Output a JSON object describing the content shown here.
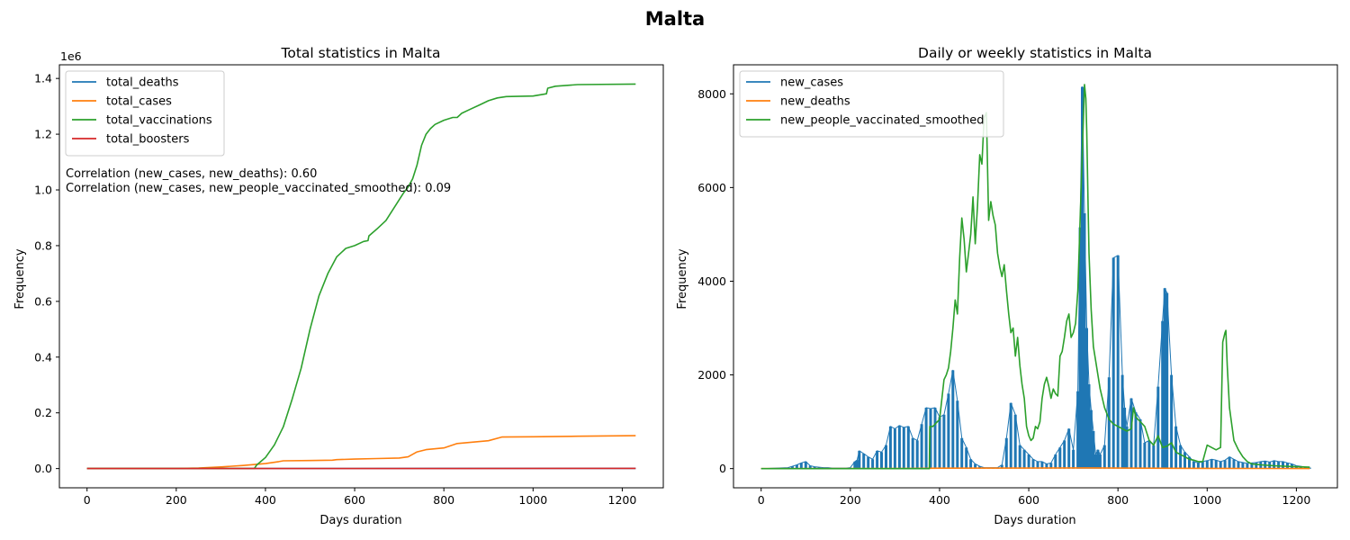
{
  "figure": {
    "title": "Malta"
  },
  "colors": {
    "blue": "#1f77b4",
    "orange": "#ff7f0e",
    "green": "#2ca02c",
    "red": "#d62728"
  },
  "chart_data": [
    {
      "type": "line",
      "title": "Total statistics in Malta",
      "xlabel": "Days duration",
      "ylabel": "Frequency",
      "y_offset_text": "1e6",
      "xlim": [
        -62,
        1292
      ],
      "ylim": [
        -0.069,
        1.449
      ],
      "xticks": [
        0,
        200,
        400,
        600,
        800,
        1000,
        1200
      ],
      "xtick_labels": [
        "0",
        "200",
        "400",
        "600",
        "800",
        "1000",
        "1200"
      ],
      "yticks": [
        0,
        0.2,
        0.4,
        0.6,
        0.8,
        1.0,
        1.2,
        1.4
      ],
      "ytick_labels": [
        "0.0",
        "0.2",
        "0.4",
        "0.6",
        "0.8",
        "1.0",
        "1.2",
        "1.4"
      ],
      "legend_position": "top-left",
      "annotations": [
        "Correlation (new_cases, new_deaths): 0.60",
        "Correlation (new_cases, new_people_vaccinated_smoothed): 0.09"
      ],
      "series": [
        {
          "name": "total_deaths",
          "color": "#1f77b4",
          "x": [
            0,
            200,
            400,
            600,
            800,
            1000,
            1230
          ],
          "y": [
            0,
            0.0,
            0.0005,
            0.0006,
            0.0007,
            0.0008,
            0.0008
          ]
        },
        {
          "name": "total_cases",
          "color": "#ff7f0e",
          "x": [
            0,
            200,
            250,
            300,
            350,
            400,
            430,
            440,
            500,
            550,
            560,
            600,
            650,
            700,
            720,
            740,
            760,
            800,
            830,
            900,
            930,
            1000,
            1100,
            1230
          ],
          "y": [
            0,
            0.0,
            0.002,
            0.006,
            0.011,
            0.018,
            0.025,
            0.028,
            0.029,
            0.03,
            0.032,
            0.034,
            0.036,
            0.038,
            0.042,
            0.06,
            0.068,
            0.074,
            0.09,
            0.1,
            0.113,
            0.114,
            0.116,
            0.118
          ]
        },
        {
          "name": "total_vaccinations",
          "color": "#2ca02c",
          "x": [
            0,
            375,
            380,
            400,
            420,
            440,
            460,
            480,
            500,
            520,
            540,
            560,
            580,
            600,
            620,
            630,
            632,
            650,
            670,
            690,
            710,
            720,
            730,
            740,
            750,
            760,
            770,
            780,
            800,
            820,
            830,
            840,
            860,
            880,
            900,
            920,
            940,
            1000,
            1030,
            1033,
            1050,
            1100,
            1230
          ],
          "y": [
            0,
            0,
            0.012,
            0.04,
            0.085,
            0.15,
            0.25,
            0.36,
            0.5,
            0.62,
            0.7,
            0.76,
            0.79,
            0.8,
            0.815,
            0.818,
            0.835,
            0.86,
            0.89,
            0.94,
            0.99,
            1.01,
            1.04,
            1.09,
            1.16,
            1.2,
            1.22,
            1.235,
            1.25,
            1.26,
            1.26,
            1.275,
            1.29,
            1.305,
            1.32,
            1.33,
            1.335,
            1.337,
            1.345,
            1.365,
            1.372,
            1.378,
            1.38
          ]
        },
        {
          "name": "total_boosters",
          "color": "#d62728",
          "x": [
            0,
            600,
            1230
          ],
          "y": [
            0,
            0.0,
            0.0008
          ]
        }
      ]
    },
    {
      "type": "line",
      "title": "Daily or weekly statistics in Malta",
      "xlabel": "Days duration",
      "ylabel": "Frequency",
      "xlim": [
        -62,
        1292
      ],
      "ylim": [
        -410,
        8620
      ],
      "xticks": [
        0,
        200,
        400,
        600,
        800,
        1000,
        1200
      ],
      "xtick_labels": [
        "0",
        "200",
        "400",
        "600",
        "800",
        "1000",
        "1200"
      ],
      "yticks": [
        0,
        2000,
        4000,
        6000,
        8000
      ],
      "ytick_labels": [
        "0",
        "2000",
        "4000",
        "6000",
        "8000"
      ],
      "legend_position": "top-left",
      "series": [
        {
          "name": "new_cases",
          "color": "#1f77b4",
          "style": "weekly-spikes",
          "x": [
            0,
            60,
            70,
            80,
            90,
            100,
            110,
            120,
            130,
            140,
            150,
            160,
            170,
            180,
            190,
            200,
            210,
            215,
            220,
            230,
            240,
            250,
            260,
            270,
            280,
            290,
            300,
            310,
            320,
            330,
            340,
            350,
            360,
            370,
            380,
            390,
            400,
            410,
            420,
            430,
            440,
            450,
            460,
            470,
            480,
            490,
            500,
            510,
            520,
            530,
            540,
            550,
            560,
            570,
            580,
            590,
            600,
            610,
            620,
            630,
            640,
            650,
            660,
            670,
            680,
            690,
            700,
            710,
            715,
            720,
            725,
            730,
            735,
            740,
            745,
            750,
            755,
            760,
            770,
            780,
            790,
            800,
            810,
            815,
            820,
            830,
            840,
            850,
            860,
            870,
            880,
            890,
            900,
            905,
            910,
            920,
            930,
            940,
            950,
            960,
            970,
            980,
            990,
            1000,
            1010,
            1020,
            1030,
            1040,
            1050,
            1060,
            1070,
            1080,
            1090,
            1100,
            1110,
            1120,
            1130,
            1140,
            1150,
            1160,
            1170,
            1180,
            1190,
            1200,
            1210,
            1220,
            1230
          ],
          "y": [
            0,
            20,
            50,
            80,
            120,
            150,
            60,
            40,
            30,
            20,
            20,
            10,
            10,
            10,
            10,
            20,
            150,
            180,
            380,
            320,
            250,
            200,
            380,
            350,
            500,
            900,
            850,
            920,
            880,
            900,
            650,
            600,
            950,
            1300,
            1280,
            1300,
            1100,
            1150,
            1600,
            2100,
            1450,
            650,
            450,
            200,
            100,
            50,
            20,
            20,
            20,
            20,
            80,
            650,
            1400,
            1150,
            500,
            400,
            300,
            200,
            150,
            150,
            100,
            120,
            300,
            450,
            600,
            850,
            400,
            1650,
            5150,
            8150,
            5450,
            3000,
            1800,
            1250,
            800,
            300,
            400,
            300,
            500,
            1950,
            4500,
            4550,
            2000,
            1300,
            900,
            1500,
            1200,
            1050,
            550,
            600,
            500,
            1750,
            3150,
            3850,
            3750,
            2000,
            900,
            500,
            350,
            250,
            150,
            120,
            150,
            170,
            200,
            180,
            150,
            180,
            250,
            200,
            150,
            130,
            110,
            120,
            130,
            150,
            160,
            140,
            170,
            150,
            150,
            120,
            100,
            60,
            50,
            30,
            20
          ]
        },
        {
          "name": "new_deaths",
          "color": "#ff7f0e",
          "x": [
            0,
            300,
            400,
            600,
            730,
            800,
            1000,
            1230
          ],
          "y": [
            0,
            2,
            8,
            10,
            15,
            10,
            5,
            2
          ]
        },
        {
          "name": "new_people_vaccinated_smoothed",
          "color": "#2ca02c",
          "x": [
            0,
            377,
            378,
            385,
            395,
            400,
            410,
            415,
            420,
            425,
            430,
            435,
            440,
            445,
            450,
            455,
            460,
            465,
            470,
            475,
            480,
            485,
            490,
            495,
            500,
            503,
            505,
            510,
            515,
            520,
            525,
            530,
            535,
            540,
            545,
            550,
            555,
            560,
            565,
            570,
            575,
            580,
            585,
            590,
            595,
            600,
            605,
            610,
            615,
            620,
            625,
            630,
            635,
            640,
            645,
            650,
            655,
            660,
            665,
            670,
            675,
            680,
            685,
            690,
            695,
            700,
            705,
            710,
            715,
            720,
            725,
            728,
            730,
            733,
            735,
            740,
            745,
            750,
            755,
            760,
            770,
            780,
            790,
            800,
            810,
            820,
            830,
            835,
            840,
            850,
            860,
            870,
            880,
            890,
            900,
            910,
            920,
            930,
            940,
            950,
            960,
            970,
            980,
            990,
            1000,
            1010,
            1020,
            1030,
            1035,
            1040,
            1042,
            1045,
            1050,
            1060,
            1070,
            1080,
            1090,
            1100,
            1120,
            1150,
            1200,
            1230
          ],
          "y": [
            0,
            0,
            900,
            900,
            1000,
            1050,
            1900,
            2000,
            2150,
            2500,
            3000,
            3600,
            3300,
            4500,
            5350,
            4900,
            4200,
            4600,
            5000,
            5800,
            4800,
            5600,
            6700,
            6500,
            7500,
            7550,
            7600,
            5300,
            5700,
            5400,
            5200,
            4600,
            4300,
            4100,
            4350,
            3800,
            3300,
            2900,
            3000,
            2400,
            2800,
            2200,
            1800,
            1500,
            900,
            700,
            600,
            650,
            900,
            850,
            1000,
            1500,
            1800,
            1950,
            1750,
            1500,
            1700,
            1600,
            1550,
            2400,
            2500,
            2800,
            3150,
            3300,
            2800,
            2900,
            3100,
            3800,
            5300,
            6700,
            8200,
            7900,
            7200,
            5600,
            4600,
            3400,
            2600,
            2300,
            2000,
            1700,
            1300,
            1050,
            950,
            900,
            850,
            800,
            850,
            1300,
            1100,
            1000,
            900,
            600,
            500,
            700,
            450,
            480,
            550,
            350,
            300,
            250,
            200,
            180,
            150,
            150,
            500,
            450,
            400,
            450,
            2700,
            2900,
            2950,
            2200,
            1300,
            600,
            400,
            250,
            150,
            100,
            80,
            60,
            40,
            30
          ]
        }
      ]
    }
  ]
}
